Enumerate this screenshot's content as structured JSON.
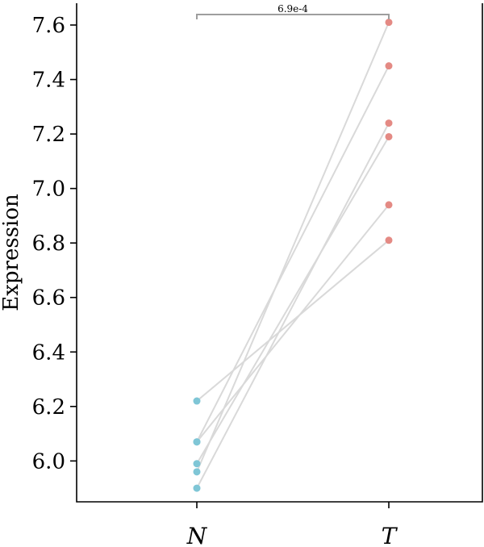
{
  "chart_data": {
    "type": "scatter",
    "ylabel": "Expression",
    "categories": [
      "N",
      "T"
    ],
    "ylim": [
      5.85,
      7.68
    ],
    "yticks": [
      "6.0",
      "6.2",
      "6.4",
      "6.6",
      "6.8",
      "7.0",
      "7.2",
      "7.4",
      "7.6"
    ],
    "grid": false,
    "colors": {
      "N": "#7fc6d6",
      "T": "#e48a84",
      "line": "#d9d9d9",
      "bracket": "#9e9e9e"
    },
    "pairs": [
      {
        "N": 5.96,
        "T": 7.61
      },
      {
        "N": 6.07,
        "T": 7.45
      },
      {
        "N": 5.9,
        "T": 7.24
      },
      {
        "N": 5.99,
        "T": 7.19
      },
      {
        "N": 6.07,
        "T": 6.94
      },
      {
        "N": 6.22,
        "T": 6.81
      }
    ],
    "annotation": {
      "text": "6.9e-4"
    }
  }
}
